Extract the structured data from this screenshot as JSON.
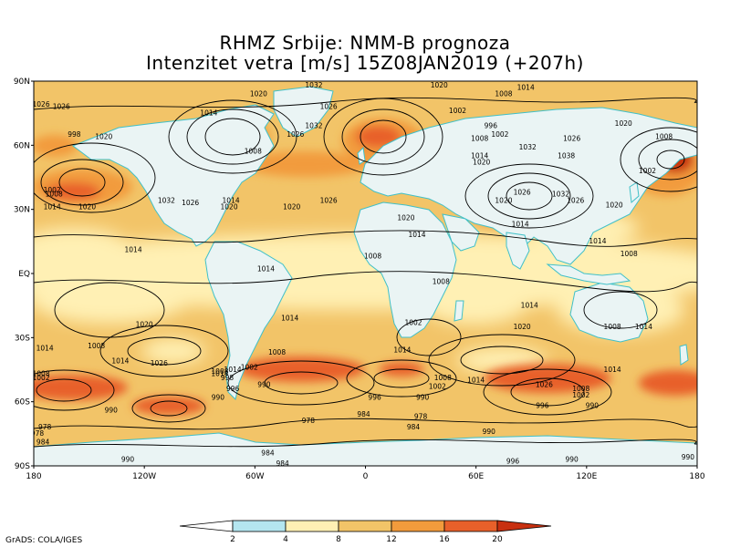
{
  "header": {
    "title_line1": "RHMZ Srbije: NMM-B prognoza",
    "title_line2": "Intenzitet vetra [m/s] 15Z08JAN2019 (+207h)"
  },
  "map": {
    "lat_labels": [
      "90N",
      "60N",
      "30N",
      "EQ",
      "30S",
      "60S",
      "90S"
    ],
    "lon_labels": [
      "180",
      "120W",
      "60W",
      "0",
      "60E",
      "120E",
      "180"
    ],
    "colors": {
      "ocean": "#f2c468",
      "land": "#eaf4f4",
      "coast": "#40c0c8",
      "contour": "#000000"
    },
    "isobar_labels": [
      {
        "t": "1026",
        "lon": -176,
        "lat": 78
      },
      {
        "t": "1026",
        "lon": -165,
        "lat": 77
      },
      {
        "t": "998",
        "lon": -158,
        "lat": 64
      },
      {
        "t": "1020",
        "lon": -142,
        "lat": 63
      },
      {
        "t": "1014",
        "lon": -85,
        "lat": 74
      },
      {
        "t": "1020",
        "lon": -58,
        "lat": 83
      },
      {
        "t": "1032",
        "lon": -28,
        "lat": 87
      },
      {
        "t": "1026",
        "lon": -20,
        "lat": 77
      },
      {
        "t": "1032",
        "lon": -28,
        "lat": 68
      },
      {
        "t": "1026",
        "lon": -38,
        "lat": 64
      },
      {
        "t": "1008",
        "lon": -61,
        "lat": 56
      },
      {
        "t": "1002",
        "lon": -170,
        "lat": 38
      },
      {
        "t": "1008",
        "lon": -169,
        "lat": 36
      },
      {
        "t": "1014",
        "lon": -170,
        "lat": 30
      },
      {
        "t": "1020",
        "lon": -151,
        "lat": 30
      },
      {
        "t": "1032",
        "lon": -108,
        "lat": 33
      },
      {
        "t": "1026",
        "lon": -95,
        "lat": 32
      },
      {
        "t": "1014",
        "lon": -73,
        "lat": 33
      },
      {
        "t": "1020",
        "lon": -74,
        "lat": 30
      },
      {
        "t": "1020",
        "lon": -40,
        "lat": 30
      },
      {
        "t": "1026",
        "lon": -20,
        "lat": 33
      },
      {
        "t": "1020",
        "lon": 40,
        "lat": 87
      },
      {
        "t": "1008",
        "lon": 75,
        "lat": 83
      },
      {
        "t": "1014",
        "lon": 87,
        "lat": 86
      },
      {
        "t": "1002",
        "lon": 50,
        "lat": 75
      },
      {
        "t": "996",
        "lon": 68,
        "lat": 68
      },
      {
        "t": "1002",
        "lon": 73,
        "lat": 64
      },
      {
        "t": "1008",
        "lon": 62,
        "lat": 62
      },
      {
        "t": "1014",
        "lon": 62,
        "lat": 54
      },
      {
        "t": "1020",
        "lon": 63,
        "lat": 51
      },
      {
        "t": "1032",
        "lon": 88,
        "lat": 58
      },
      {
        "t": "1026",
        "lon": 112,
        "lat": 62
      },
      {
        "t": "1038",
        "lon": 109,
        "lat": 54
      },
      {
        "t": "1020",
        "lon": 140,
        "lat": 69
      },
      {
        "t": "1008",
        "lon": 162,
        "lat": 63
      },
      {
        "t": "1002",
        "lon": 153,
        "lat": 47
      },
      {
        "t": "1026",
        "lon": 85,
        "lat": 37
      },
      {
        "t": "1020",
        "lon": 75,
        "lat": 33
      },
      {
        "t": "1032",
        "lon": 106,
        "lat": 36
      },
      {
        "t": "1026",
        "lon": 114,
        "lat": 33
      },
      {
        "t": "1020",
        "lon": 135,
        "lat": 31
      },
      {
        "t": "1020",
        "lon": 22,
        "lat": 25
      },
      {
        "t": "1014",
        "lon": 28,
        "lat": 17
      },
      {
        "t": "1014",
        "lon": 84,
        "lat": 22
      },
      {
        "t": "1014",
        "lon": 126,
        "lat": 14
      },
      {
        "t": "1008",
        "lon": 4,
        "lat": 7
      },
      {
        "t": "1008",
        "lon": 143,
        "lat": 8
      },
      {
        "t": "1014",
        "lon": -126,
        "lat": 10
      },
      {
        "t": "1014",
        "lon": -54,
        "lat": 1
      },
      {
        "t": "1008",
        "lon": 41,
        "lat": -5
      },
      {
        "t": "1014",
        "lon": -41,
        "lat": -22
      },
      {
        "t": "1002",
        "lon": 26,
        "lat": -24
      },
      {
        "t": "1014",
        "lon": 89,
        "lat": -16
      },
      {
        "t": "1020",
        "lon": -120,
        "lat": -25
      },
      {
        "t": "1020",
        "lon": 85,
        "lat": -26
      },
      {
        "t": "1008",
        "lon": 134,
        "lat": -26
      },
      {
        "t": "1014",
        "lon": 151,
        "lat": -26
      },
      {
        "t": "1008",
        "lon": -146,
        "lat": -35
      },
      {
        "t": "1014",
        "lon": -174,
        "lat": -36
      },
      {
        "t": "1014",
        "lon": -133,
        "lat": -42
      },
      {
        "t": "1026",
        "lon": -112,
        "lat": -43
      },
      {
        "t": "1008",
        "lon": -48,
        "lat": -38
      },
      {
        "t": "1014",
        "lon": 20,
        "lat": -37
      },
      {
        "t": "1014",
        "lon": -72,
        "lat": -46
      },
      {
        "t": "1002",
        "lon": -63,
        "lat": -45
      },
      {
        "t": "1008",
        "lon": -79,
        "lat": -47
      },
      {
        "t": "998",
        "lon": -75,
        "lat": -50
      },
      {
        "t": "1014",
        "lon": -79,
        "lat": -48
      },
      {
        "t": "990",
        "lon": -55,
        "lat": -53
      },
      {
        "t": "990",
        "lon": -80,
        "lat": -59
      },
      {
        "t": "996",
        "lon": -72,
        "lat": -55
      },
      {
        "t": "1008",
        "lon": -176,
        "lat": -48
      },
      {
        "t": "1002",
        "lon": -176,
        "lat": -50
      },
      {
        "t": "990",
        "lon": -138,
        "lat": -65
      },
      {
        "t": "1008",
        "lon": 42,
        "lat": -50
      },
      {
        "t": "1002",
        "lon": 39,
        "lat": -54
      },
      {
        "t": "996",
        "lon": 5,
        "lat": -59
      },
      {
        "t": "990",
        "lon": 31,
        "lat": -59
      },
      {
        "t": "1014",
        "lon": 60,
        "lat": -51
      },
      {
        "t": "1026",
        "lon": 97,
        "lat": -53
      },
      {
        "t": "1008",
        "lon": 117,
        "lat": -55
      },
      {
        "t": "1002",
        "lon": 117,
        "lat": -58
      },
      {
        "t": "1014",
        "lon": 134,
        "lat": -46
      },
      {
        "t": "996",
        "lon": 96,
        "lat": -63
      },
      {
        "t": "990",
        "lon": 123,
        "lat": -63
      },
      {
        "t": "984",
        "lon": -1,
        "lat": -67
      },
      {
        "t": "978",
        "lon": -31,
        "lat": -70
      },
      {
        "t": "984",
        "lon": 26,
        "lat": -73
      },
      {
        "t": "978",
        "lon": 30,
        "lat": -68
      },
      {
        "t": "990",
        "lon": 67,
        "lat": -75
      },
      {
        "t": "978",
        "lon": -174,
        "lat": -73
      },
      {
        "t": "978",
        "lon": -178,
        "lat": -76
      },
      {
        "t": "984",
        "lon": -175,
        "lat": -80
      },
      {
        "t": "990",
        "lon": -129,
        "lat": -88
      },
      {
        "t": "984",
        "lon": -53,
        "lat": -85
      },
      {
        "t": "984",
        "lon": -45,
        "lat": -90
      },
      {
        "t": "996",
        "lon": 80,
        "lat": -89
      },
      {
        "t": "990",
        "lon": 112,
        "lat": -88
      },
      {
        "t": "990",
        "lon": 175,
        "lat": -87
      },
      {
        "t": "990",
        "lon": -174,
        "lat": -96
      },
      {
        "t": "990",
        "lon": -79,
        "lat": -96
      }
    ]
  },
  "legend": {
    "levels": [
      "2",
      "4",
      "8",
      "12",
      "16",
      "20"
    ],
    "colors": [
      "#ffffff",
      "#b4e6f0",
      "#fff0b4",
      "#f2c468",
      "#f29b3c",
      "#e8602a",
      "#c83010"
    ]
  },
  "footer": {
    "credit": "GrADS: COLA/IGES"
  }
}
